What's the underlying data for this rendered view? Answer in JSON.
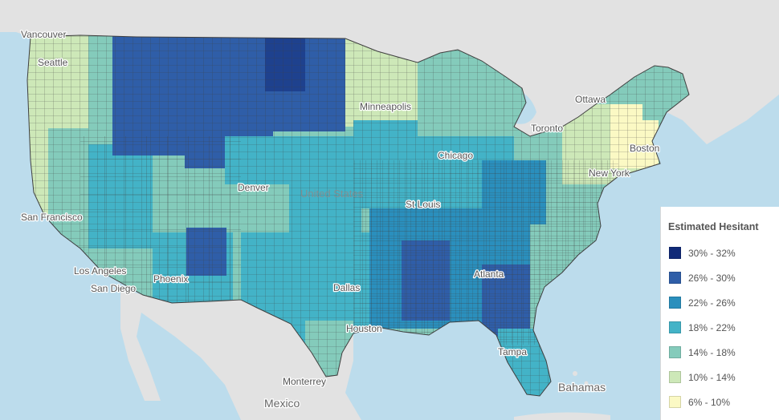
{
  "map": {
    "places": {
      "vancouver": "Vancouver",
      "seattle": "Seattle",
      "san_francisco": "San Francisco",
      "los_angeles": "Los Angeles",
      "san_diego": "San Diego",
      "phoenix": "Phoenix",
      "denver": "Denver",
      "dallas": "Dallas",
      "houston": "Houston",
      "st_louis": "St Louis",
      "chicago": "Chicago",
      "minneapolis": "Minneapolis",
      "atlanta": "Atlanta",
      "tampa": "Tampa",
      "ottawa": "Ottawa",
      "toronto": "Toronto",
      "new_york": "New York",
      "boston": "Boston",
      "monterrey": "Monterrey",
      "mexico": "Mexico",
      "bahamas": "Bahamas",
      "united_states": "United States"
    },
    "colors": {
      "water": "#bcdcec",
      "land": "#e2e2e2",
      "county_border": "#3f3f3f"
    }
  },
  "legend": {
    "title": "Estimated Hesitant",
    "classes": [
      {
        "label": "30% - 32%",
        "color": "#102a78"
      },
      {
        "label": "26% - 30%",
        "color": "#2f5ea8"
      },
      {
        "label": "22% - 26%",
        "color": "#2a8fbd"
      },
      {
        "label": "18% - 22%",
        "color": "#43b3c7"
      },
      {
        "label": "14% - 18%",
        "color": "#84cbbb"
      },
      {
        "label": "10% - 14%",
        "color": "#cde8b8"
      },
      {
        "label": "6% - 10%",
        "color": "#fbf9c4"
      }
    ]
  }
}
